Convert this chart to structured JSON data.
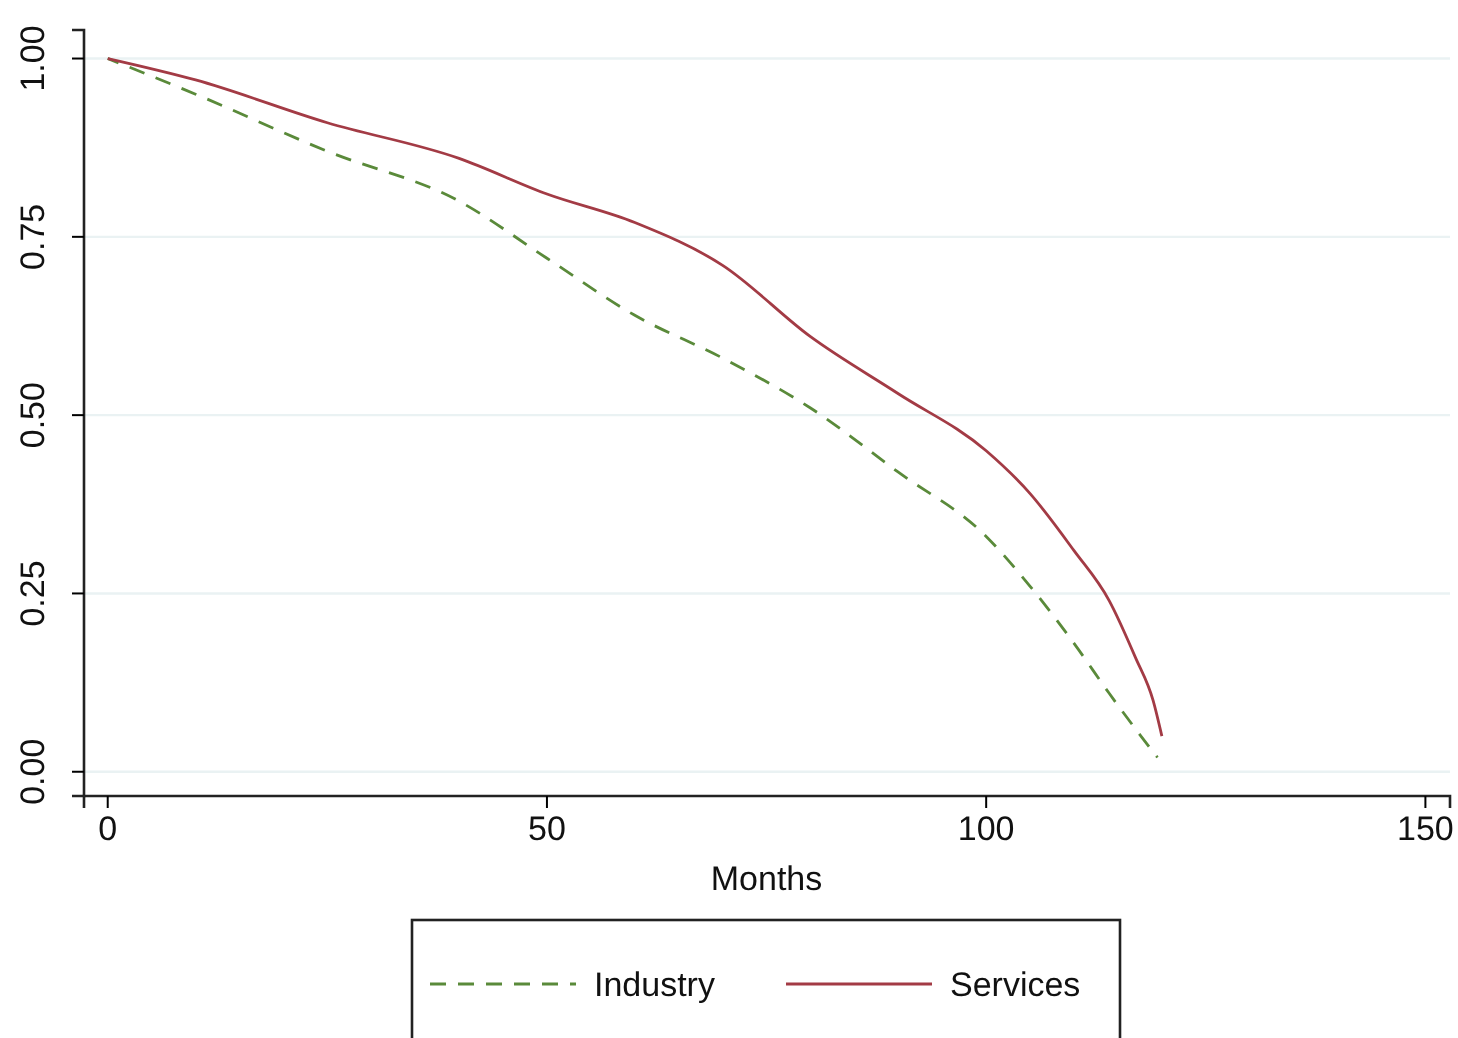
{
  "chart_data": {
    "type": "line",
    "xlabel": "Months",
    "x": [
      0,
      10,
      25,
      40,
      50,
      60,
      70,
      80,
      90,
      100,
      105,
      110,
      114,
      117,
      119,
      120
    ],
    "series": [
      {
        "name": "Industry",
        "color": "#5a8a3a",
        "line_style": "dashed",
        "x": [
          0,
          10,
          25,
          40,
          50,
          60,
          70,
          80,
          90,
          100,
          105,
          110,
          114,
          117,
          119.5
        ],
        "values": [
          1.0,
          0.95,
          0.87,
          0.8,
          0.72,
          0.64,
          0.58,
          0.51,
          0.42,
          0.33,
          0.26,
          0.18,
          0.11,
          0.06,
          0.02
        ]
      },
      {
        "name": "Services",
        "color": "#a33b45",
        "line_style": "solid",
        "values": [
          1.0,
          0.97,
          0.91,
          0.86,
          0.81,
          0.77,
          0.71,
          0.61,
          0.53,
          0.45,
          0.39,
          0.31,
          0.24,
          0.16,
          0.1,
          0.05
        ]
      }
    ],
    "xlim": [
      -2.7,
      152.8
    ],
    "xticks": [
      0,
      50,
      100,
      150
    ],
    "ylim": [
      -0.034,
      1.04
    ],
    "yticks": [
      {
        "value": 0,
        "label": "0.00"
      },
      {
        "value": 0.25,
        "label": "0.25"
      },
      {
        "value": 0.5,
        "label": "0.50"
      },
      {
        "value": 0.75,
        "label": "0.75"
      },
      {
        "value": 1,
        "label": "1.00"
      }
    ],
    "grid": "y",
    "legend": "bottom"
  }
}
